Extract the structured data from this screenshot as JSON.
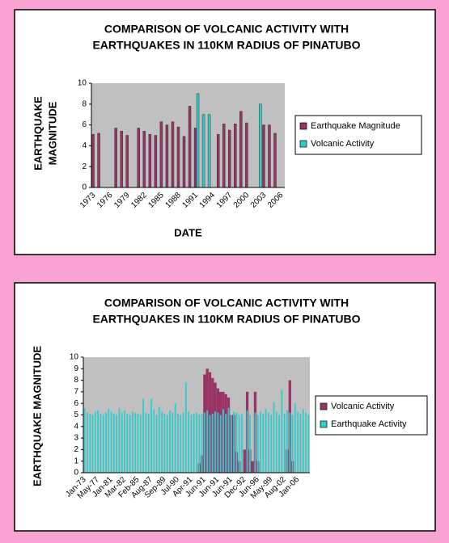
{
  "chart_data": [
    {
      "type": "bar",
      "title": [
        "COMPARISON OF VOLCANIC ACTIVITY WITH",
        "EARTHQUAKES IN 110KM RADIUS OF PINATUBO"
      ],
      "y_label": [
        "EARTHQUAKE",
        "MAGNITUDE"
      ],
      "x_label": "DATE",
      "categories": [
        "1973",
        null,
        null,
        "1976",
        null,
        null,
        "1979",
        null,
        null,
        "1982",
        null,
        null,
        "1985",
        null,
        null,
        "1988",
        null,
        null,
        "1991",
        null,
        null,
        "1994",
        null,
        null,
        "1997",
        null,
        null,
        "2000",
        null,
        null,
        "2003",
        null,
        null,
        "2006"
      ],
      "series": [
        {
          "name": "Earthquake Magnitude",
          "color": "#993366",
          "values": [
            5.1,
            5.2,
            null,
            null,
            5.7,
            5.4,
            5.0,
            null,
            5.7,
            5.4,
            5.1,
            5.0,
            6.3,
            6.0,
            6.3,
            5.8,
            4.9,
            7.8,
            5.7,
            null,
            null,
            null,
            5.1,
            6.1,
            5.5,
            6.1,
            7.3,
            6.2,
            null,
            null,
            6.0,
            6.0,
            5.2,
            null
          ]
        },
        {
          "name": "Volcanic Activity",
          "color": "#33cccc",
          "values": [
            null,
            null,
            null,
            null,
            null,
            null,
            null,
            null,
            null,
            null,
            null,
            null,
            null,
            null,
            null,
            null,
            null,
            null,
            9.0,
            7.0,
            7.0,
            null,
            null,
            null,
            null,
            null,
            null,
            null,
            null,
            8.0,
            null,
            null,
            null,
            null
          ]
        }
      ],
      "ylim": [
        0,
        10
      ],
      "yticks": [
        0,
        2,
        4,
        6,
        8,
        10
      ],
      "grid": false,
      "legend": "right"
    },
    {
      "type": "bar",
      "title": [
        "COMPARISON OF VOLCANIC ACTIVITY WITH",
        "EARTHQUAKES IN 110KM RADIUS OF PINATUBO"
      ],
      "y_label": [
        "EARTHQUAKE MAGNITUDE"
      ],
      "categories": [
        "Jan-73",
        null,
        null,
        null,
        null,
        "May-77",
        null,
        null,
        null,
        null,
        "Jan-81",
        null,
        null,
        null,
        null,
        "Mar-82",
        null,
        null,
        null,
        null,
        "Feb-85",
        null,
        null,
        null,
        null,
        "Aug-87",
        null,
        null,
        null,
        null,
        "Sep-89",
        null,
        null,
        null,
        null,
        "Jul-90",
        null,
        null,
        null,
        null,
        "Apr-91",
        null,
        null,
        null,
        null,
        "Jun-91",
        null,
        null,
        null,
        null,
        "Jun-91",
        null,
        null,
        null,
        null,
        "Jun-91",
        null,
        null,
        null,
        null,
        "Dec-92",
        null,
        null,
        null,
        null,
        "Jun-96",
        null,
        null,
        null,
        null,
        "May-99",
        null,
        null,
        null,
        null,
        "Aug-02",
        null,
        null,
        null,
        null,
        "Jan-06",
        null,
        null,
        null,
        null
      ],
      "series": [
        {
          "name": "Volcanic Activity",
          "color": "#993366",
          "values": [
            null,
            null,
            null,
            null,
            null,
            null,
            null,
            null,
            null,
            null,
            null,
            null,
            null,
            null,
            null,
            null,
            null,
            null,
            null,
            null,
            null,
            null,
            null,
            null,
            null,
            null,
            null,
            null,
            null,
            null,
            null,
            null,
            null,
            null,
            null,
            null,
            null,
            null,
            null,
            null,
            null,
            null,
            null,
            0.8,
            1.5,
            8.5,
            9.0,
            8.7,
            8.2,
            7.8,
            7.3,
            7.0,
            7.0,
            6.8,
            6.5,
            5.0,
            5.0,
            1.8,
            1.0,
            null,
            2.0,
            7.0,
            2.0,
            1.0,
            7.0,
            1.0,
            null,
            null,
            null,
            null,
            null,
            null,
            null,
            null,
            null,
            null,
            2.0,
            8.0,
            1.0,
            null,
            null,
            null,
            null,
            null,
            null
          ]
        },
        {
          "name": "Earthquake Activity",
          "color": "#33cccc",
          "values": [
            5.6,
            5.2,
            5.1,
            5.0,
            5.3,
            5.4,
            5.1,
            5.0,
            5.2,
            5.5,
            5.3,
            5.1,
            5.0,
            5.6,
            5.2,
            5.4,
            5.1,
            5.0,
            5.3,
            5.2,
            5.1,
            5.0,
            6.4,
            5.2,
            5.1,
            6.4,
            5.5,
            5.0,
            5.7,
            5.3,
            5.1,
            5.0,
            5.4,
            5.2,
            6.0,
            5.1,
            5.0,
            5.2,
            7.8,
            5.3,
            5.0,
            5.1,
            5.2,
            5.0,
            5.1,
            5.2,
            5.4,
            5.0,
            5.1,
            5.3,
            5.2,
            5.0,
            5.5,
            5.1,
            5.6,
            5.0,
            5.3,
            5.2,
            5.0,
            5.1,
            null,
            5.4,
            5.0,
            null,
            5.2,
            5.0,
            5.3,
            5.1,
            5.5,
            5.2,
            5.0,
            6.1,
            5.3,
            5.0,
            7.2,
            5.1,
            5.4,
            5.2,
            5.0,
            6.0,
            5.3,
            5.1,
            5.5,
            5.2,
            5.0
          ]
        }
      ],
      "ylim": [
        0,
        10
      ],
      "yticks": [
        0,
        1,
        2,
        3,
        4,
        5,
        6,
        7,
        8,
        9,
        10
      ],
      "grid": false,
      "legend": "right"
    }
  ]
}
